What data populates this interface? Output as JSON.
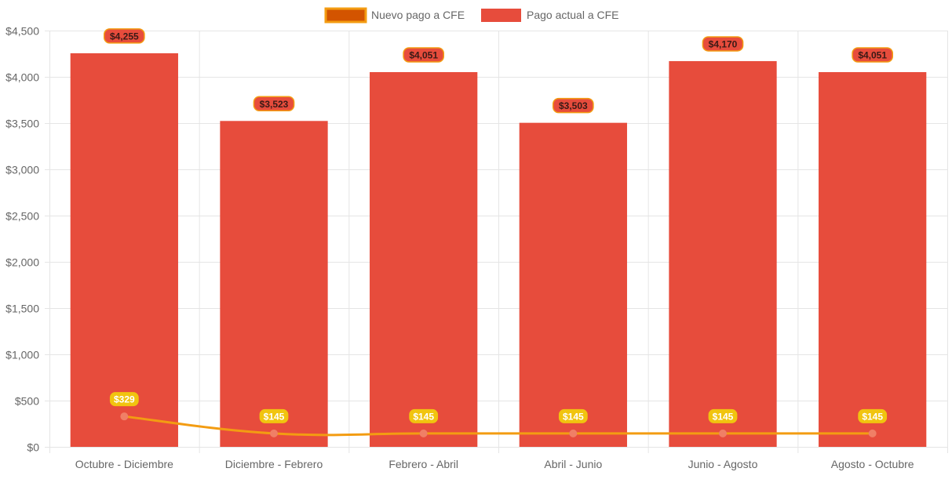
{
  "legend": {
    "line_label": "Nuevo pago a CFE",
    "bar_label": "Pago actual a CFE"
  },
  "colors": {
    "bar": "#e74c3c",
    "line": "#f39c12",
    "line_legend_fill": "#d35400",
    "point": "#f07f66",
    "bar_label_bg": "#e74c3c",
    "bar_label_border": "#f39c12",
    "bar_label_text": "#3a1a16",
    "line_label_bg": "#f1c40f",
    "line_label_text": "#ffffff",
    "grid": "#e5e5e5",
    "tick_text": "#666666"
  },
  "chart_data": {
    "type": "bar",
    "categories": [
      "Octubre - Diciembre",
      "Diciembre - Febrero",
      "Febrero - Abril",
      "Abril - Junio",
      "Junio - Agosto",
      "Agosto - Octubre"
    ],
    "series": [
      {
        "name": "Pago actual a CFE",
        "type": "bar",
        "values": [
          4255,
          3523,
          4051,
          3503,
          4170,
          4051
        ],
        "labels": [
          "$4,255",
          "$3,523",
          "$4,051",
          "$3,503",
          "$4,170",
          "$4,051"
        ]
      },
      {
        "name": "Nuevo pago a CFE",
        "type": "line",
        "values": [
          329,
          145,
          145,
          145,
          145,
          145
        ],
        "labels": [
          "$329",
          "$145",
          "$145",
          "$145",
          "$145",
          "$145"
        ]
      }
    ],
    "ylim": [
      0,
      4500
    ],
    "yticks": [
      "$0",
      "$500",
      "$1,000",
      "$1,500",
      "$2,000",
      "$2,500",
      "$3,000",
      "$3,500",
      "$4,000",
      "$4,500"
    ],
    "grid": true,
    "legend_position": "top-center"
  }
}
